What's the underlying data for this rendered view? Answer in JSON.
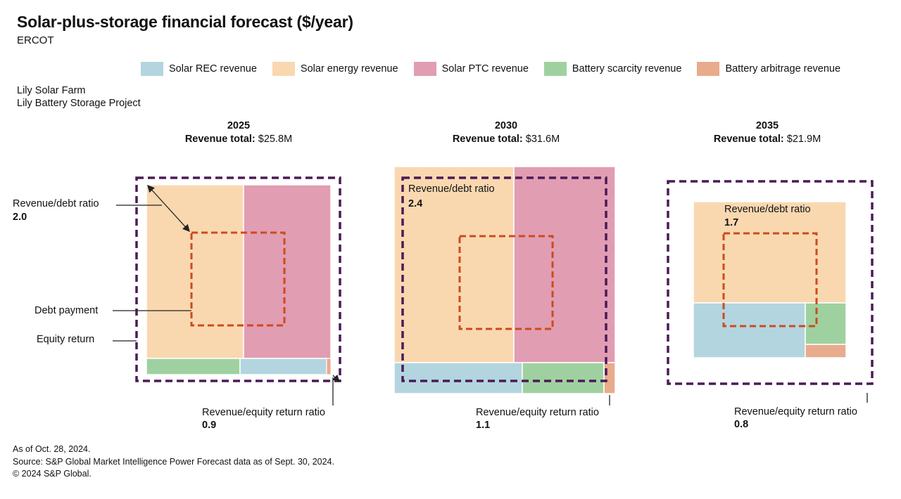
{
  "title": "Solar-plus-storage financial forecast ($/year)",
  "subtitle": "ERCOT",
  "project_lines": [
    "Lily Solar Farm",
    "Lily Battery Storage Project"
  ],
  "legend": [
    {
      "label": "Solar REC revenue",
      "color": "#b3d5df"
    },
    {
      "label": "Solar energy revenue",
      "color": "#f9d8b0"
    },
    {
      "label": "Solar PTC revenue",
      "color": "#e19db2"
    },
    {
      "label": "Battery scarcity revenue",
      "color": "#9fd1a0"
    },
    {
      "label": "Battery arbitrage revenue",
      "color": "#e8ab8c"
    }
  ],
  "annotations": {
    "revenue_debt_label": "Revenue/debt ratio",
    "revenue_equity_label": "Revenue/equity return ratio",
    "debt_payment_label": "Debt payment",
    "equity_return_label": "Equity return",
    "total_prefix": "Revenue total:"
  },
  "chart_data": {
    "type": "treemap",
    "title": "Solar-plus-storage financial forecast ($/year)",
    "subtitle": "ERCOT",
    "panels": [
      {
        "year": "2025",
        "total": "$25.8M",
        "revenue_debt_ratio": "2.0",
        "revenue_equity_ratio": "0.9"
      },
      {
        "year": "2030",
        "total": "$31.6M",
        "revenue_debt_ratio": "2.4",
        "revenue_equity_ratio": "1.1"
      },
      {
        "year": "2035",
        "total": "$21.9M",
        "revenue_debt_ratio": "1.7",
        "revenue_equity_ratio": "0.8"
      }
    ]
  },
  "footer": [
    "As of Oct. 28, 2024.",
    "Source: S&P Global Market Intelligence Power Forecast data as of Sept. 30, 2024.",
    "© 2024 S&P Global."
  ]
}
